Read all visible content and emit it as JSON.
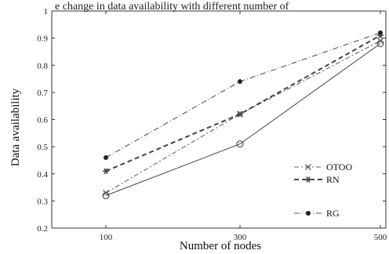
{
  "caption_fragment": "e change in data availability with different number of",
  "chart_data": {
    "type": "line",
    "categories": [
      "100",
      "300",
      "500"
    ],
    "xlabel": "Number of nodes",
    "ylabel": "Data availability",
    "ylim": [
      0.2,
      1
    ],
    "yticks": [
      "0.2",
      "0.3",
      "0.4",
      "0.5",
      "0.6",
      "0.7",
      "0.8",
      "0.9",
      "1"
    ],
    "grid": false,
    "legend_position": "right",
    "series": [
      {
        "name": "OTOO",
        "values": [
          0.33,
          0.62,
          0.89
        ],
        "color": "#666666",
        "dash": "6,3,2,3",
        "marker": "x"
      },
      {
        "name": "RN",
        "values": [
          0.41,
          0.62,
          0.91
        ],
        "color": "#444444",
        "dash": "6,4",
        "marker": "*"
      },
      {
        "name": "RG",
        "values": [
          0.46,
          0.74,
          0.92
        ],
        "color": "#555555",
        "dash": "7,3,1,3",
        "marker": "dot"
      },
      {
        "name": "",
        "values": [
          0.32,
          0.51,
          0.88
        ],
        "color": "#555555",
        "dash": "",
        "marker": "circle"
      }
    ]
  }
}
